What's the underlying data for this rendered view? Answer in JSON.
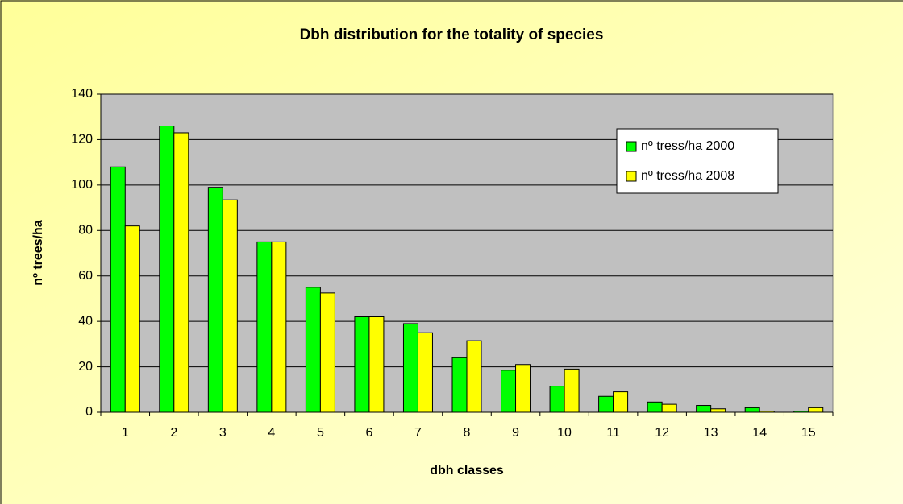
{
  "chart_data": {
    "type": "bar",
    "title": "Dbh distribution for the totality of species",
    "x_label": "dbh classes",
    "y_label": "nº trees/ha",
    "categories": [
      "1",
      "2",
      "3",
      "4",
      "5",
      "6",
      "7",
      "8",
      "9",
      "10",
      "11",
      "12",
      "13",
      "14",
      "15"
    ],
    "series": [
      {
        "name": "nº tress/ha 2000",
        "color": "#00ff00",
        "values": [
          108,
          126,
          99,
          75,
          55,
          42,
          39,
          24,
          18.5,
          11.5,
          7,
          4.5,
          3,
          2,
          0.5
        ]
      },
      {
        "name": "nº tress/ha 2008",
        "color": "#ffff00",
        "values": [
          82,
          123,
          93.5,
          75,
          52.5,
          42,
          35,
          31.5,
          21,
          19,
          9,
          3.5,
          1.5,
          0.5,
          2
        ]
      }
    ],
    "ylim": [
      0,
      140
    ],
    "yticks": [
      0,
      20,
      40,
      60,
      80,
      100,
      120,
      140
    ],
    "grid": true,
    "legend": "upper right"
  }
}
